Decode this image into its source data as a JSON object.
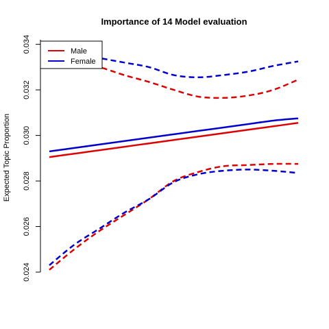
{
  "chart_data": {
    "type": "line",
    "title": "Importance of 14 Model evaluation",
    "xlabel": "",
    "ylabel": "Expected Topic Proportion",
    "x_range": [
      0,
      1
    ],
    "ylim": [
      0.024,
      0.0342
    ],
    "y_ticks": [
      0.024,
      0.026,
      0.028,
      0.03,
      0.032,
      0.034
    ],
    "y_tick_labels": [
      "0.024",
      "0.026",
      "0.028",
      "0.030",
      "0.032",
      "0.034"
    ],
    "grid": false,
    "legend": {
      "position": "top-left",
      "entries": [
        "Male",
        "Female"
      ]
    },
    "colors": {
      "Male": "#dd0000",
      "Female": "#0000cc"
    },
    "x": [
      0.0,
      0.1,
      0.2,
      0.3,
      0.4,
      0.5,
      0.6,
      0.7,
      0.8,
      0.9,
      1.0
    ],
    "series": [
      {
        "name": "Male",
        "color": "#dd0000",
        "estimate": [
          0.02905,
          0.0292,
          0.02935,
          0.0295,
          0.02965,
          0.0298,
          0.02995,
          0.0301,
          0.03025,
          0.0304,
          0.03055
        ],
        "upper": [
          0.0334,
          0.0332,
          0.033,
          0.03265,
          0.03235,
          0.032,
          0.0317,
          0.03165,
          0.03175,
          0.032,
          0.03245
        ],
        "lower": [
          0.0241,
          0.025,
          0.0258,
          0.0265,
          0.0272,
          0.028,
          0.0284,
          0.02865,
          0.0287,
          0.02875,
          0.02875
        ]
      },
      {
        "name": "Female",
        "color": "#0000cc",
        "estimate": [
          0.0293,
          0.02945,
          0.0296,
          0.02975,
          0.0299,
          0.03005,
          0.0302,
          0.03035,
          0.0305,
          0.03065,
          0.03075
        ],
        "upper": [
          0.0338,
          0.0336,
          0.0334,
          0.0332,
          0.033,
          0.03265,
          0.03255,
          0.03265,
          0.0328,
          0.03305,
          0.03325
        ],
        "lower": [
          0.0243,
          0.0252,
          0.0259,
          0.0266,
          0.0272,
          0.02795,
          0.0283,
          0.02845,
          0.0285,
          0.02845,
          0.02835
        ]
      }
    ]
  }
}
